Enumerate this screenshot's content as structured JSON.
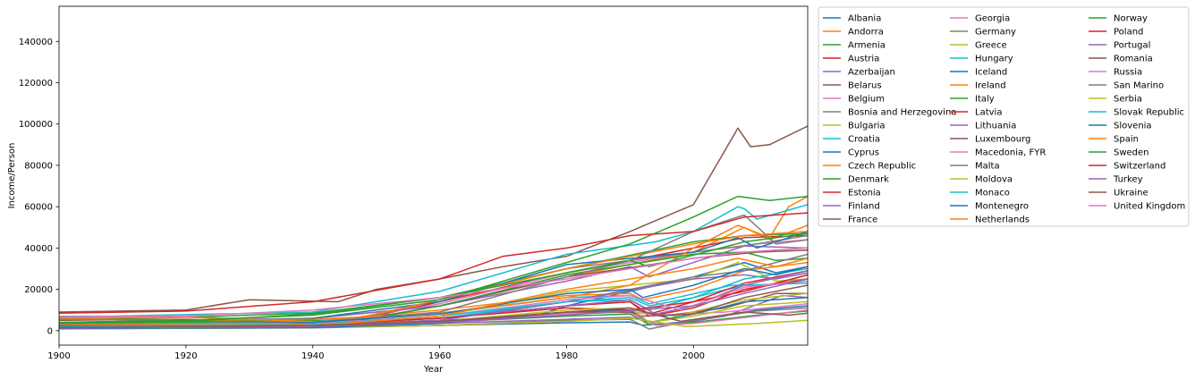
{
  "chart_data": {
    "type": "line",
    "title": "",
    "xlabel": "Year",
    "ylabel": "Income/Person",
    "xlim": [
      1900,
      2018
    ],
    "ylim": [
      -7000,
      157000
    ],
    "x_ticks": [
      1900,
      1920,
      1940,
      1960,
      1980,
      2000
    ],
    "y_ticks": [
      0,
      20000,
      40000,
      60000,
      80000,
      100000,
      120000,
      140000
    ],
    "grid": false,
    "legend_position": "outside-right",
    "legend_columns": 3,
    "series": [
      {
        "name": "Albania",
        "color": "#1f77b4",
        "x": [
          1900,
          1940,
          1960,
          1980,
          1990,
          1992,
          2000,
          2010,
          2018
        ],
        "values": [
          1200,
          1800,
          2500,
          3800,
          4200,
          2600,
          4500,
          10000,
          12000
        ]
      },
      {
        "name": "Andorra",
        "color": "#ff7f0e",
        "x": [
          1900,
          1940,
          1960,
          1980,
          2000,
          2008,
          2012,
          2018
        ],
        "values": [
          4000,
          6000,
          12000,
          26000,
          38000,
          50000,
          44000,
          51000
        ]
      },
      {
        "name": "Armenia",
        "color": "#2ca02c",
        "x": [
          1900,
          1940,
          1960,
          1980,
          1990,
          1993,
          2000,
          2010,
          2018
        ],
        "values": [
          1500,
          2500,
          4000,
          7000,
          8000,
          3000,
          4000,
          7500,
          9500
        ]
      },
      {
        "name": "Austria",
        "color": "#d62728",
        "x": [
          1900,
          1920,
          1945,
          1960,
          1980,
          2000,
          2008,
          2018
        ],
        "values": [
          5500,
          5000,
          4000,
          14000,
          28000,
          40000,
          45000,
          46000
        ]
      },
      {
        "name": "Azerbaijan",
        "color": "#9467bd",
        "x": [
          1900,
          1940,
          1960,
          1980,
          1990,
          1995,
          2005,
          2014,
          2018
        ],
        "values": [
          1300,
          2000,
          3500,
          5500,
          6500,
          2500,
          7000,
          17000,
          16000
        ]
      },
      {
        "name": "Belarus",
        "color": "#8c564b",
        "x": [
          1900,
          1940,
          1960,
          1980,
          1990,
          1995,
          2005,
          2013,
          2018
        ],
        "values": [
          1500,
          2500,
          4500,
          8500,
          11000,
          7000,
          11000,
          18000,
          18000
        ]
      },
      {
        "name": "Belgium",
        "color": "#e377c2",
        "x": [
          1900,
          1920,
          1944,
          1960,
          1980,
          2000,
          2010,
          2018
        ],
        "values": [
          6500,
          6500,
          5000,
          13000,
          28000,
          38000,
          42000,
          44000
        ]
      },
      {
        "name": "Bosnia and Herzegovina",
        "color": "#7f7f7f",
        "x": [
          1900,
          1940,
          1960,
          1980,
          1990,
          1993,
          2000,
          2010,
          2018
        ],
        "values": [
          900,
          1300,
          2500,
          5000,
          5500,
          800,
          5000,
          9500,
          11000
        ]
      },
      {
        "name": "Bulgaria",
        "color": "#bcbd22",
        "x": [
          1900,
          1940,
          1960,
          1980,
          1990,
          1997,
          2008,
          2018
        ],
        "values": [
          1500,
          2000,
          4500,
          8500,
          10000,
          7000,
          15000,
          18000
        ]
      },
      {
        "name": "Croatia",
        "color": "#17becf",
        "x": [
          1900,
          1940,
          1960,
          1980,
          1990,
          1993,
          2000,
          2008,
          2018
        ],
        "values": [
          2000,
          3000,
          6000,
          14000,
          15000,
          10000,
          16000,
          22000,
          23000
        ]
      },
      {
        "name": "Cyprus",
        "color": "#1f77b4",
        "x": [
          1900,
          1940,
          1960,
          1975,
          1980,
          2000,
          2008,
          2013,
          2018
        ],
        "values": [
          1500,
          2500,
          5000,
          7000,
          12000,
          26000,
          33000,
          28000,
          31000
        ]
      },
      {
        "name": "Czech Republic",
        "color": "#ff7f0e",
        "x": [
          1900,
          1940,
          1960,
          1980,
          1990,
          1992,
          2000,
          2008,
          2018
        ],
        "values": [
          3000,
          4500,
          10000,
          17000,
          18000,
          15000,
          20000,
          29000,
          33000
        ]
      },
      {
        "name": "Denmark",
        "color": "#2ca02c",
        "x": [
          1900,
          1920,
          1940,
          1960,
          1980,
          2000,
          2008,
          2018
        ],
        "values": [
          5000,
          6500,
          8500,
          16000,
          30000,
          43000,
          46000,
          47000
        ]
      },
      {
        "name": "Estonia",
        "color": "#d62728",
        "x": [
          1900,
          1940,
          1960,
          1980,
          1990,
          1993,
          2000,
          2008,
          2018
        ],
        "values": [
          2000,
          3500,
          6000,
          12000,
          14000,
          8000,
          14000,
          23000,
          29000
        ]
      },
      {
        "name": "Finland",
        "color": "#9467bd",
        "x": [
          1900,
          1920,
          1940,
          1960,
          1980,
          1990,
          1993,
          2008,
          2018
        ],
        "values": [
          3000,
          3500,
          6000,
          12000,
          24000,
          31000,
          26000,
          41000,
          40000
        ]
      },
      {
        "name": "France",
        "color": "#8c564b",
        "x": [
          1900,
          1920,
          1944,
          1960,
          1980,
          2000,
          2010,
          2018
        ],
        "values": [
          5000,
          5500,
          3500,
          12000,
          26000,
          35000,
          38000,
          39000
        ]
      },
      {
        "name": "Georgia",
        "color": "#e377c2",
        "x": [
          1900,
          1940,
          1960,
          1985,
          1990,
          1994,
          2000,
          2010,
          2018
        ],
        "values": [
          1200,
          2500,
          4500,
          9500,
          8500,
          2500,
          3500,
          7000,
          10000
        ]
      },
      {
        "name": "Germany",
        "color": "#7f7f7f",
        "x": [
          1900,
          1920,
          1945,
          1960,
          1980,
          2000,
          2008,
          2018
        ],
        "values": [
          5500,
          5000,
          4000,
          15000,
          30000,
          38000,
          41000,
          46000
        ]
      },
      {
        "name": "Greece",
        "color": "#bcbd22",
        "x": [
          1900,
          1940,
          1960,
          1980,
          2000,
          2007,
          2013,
          2018
        ],
        "values": [
          2000,
          3500,
          7000,
          19000,
          25000,
          33000,
          24000,
          25000
        ]
      },
      {
        "name": "Hungary",
        "color": "#17becf",
        "x": [
          1900,
          1940,
          1960,
          1980,
          1990,
          1993,
          2006,
          2012,
          2018
        ],
        "values": [
          3000,
          4500,
          8000,
          16000,
          17000,
          13000,
          22000,
          22000,
          27000
        ]
      },
      {
        "name": "Iceland",
        "color": "#1f77b4",
        "x": [
          1900,
          1940,
          1960,
          1980,
          2000,
          2007,
          2010,
          2018
        ],
        "values": [
          3000,
          6000,
          14000,
          32000,
          38000,
          45000,
          40000,
          48000
        ]
      },
      {
        "name": "Ireland",
        "color": "#ff7f0e",
        "x": [
          1900,
          1940,
          1960,
          1980,
          1990,
          2000,
          2007,
          2012,
          2015,
          2018
        ],
        "values": [
          4000,
          5500,
          8500,
          16000,
          22000,
          40000,
          51000,
          45000,
          60000,
          65000
        ]
      },
      {
        "name": "Italy",
        "color": "#2ca02c",
        "x": [
          1900,
          1940,
          1945,
          1960,
          1980,
          2000,
          2008,
          2013,
          2018
        ],
        "values": [
          3500,
          5000,
          3500,
          12000,
          27000,
          37000,
          38000,
          34000,
          35000
        ]
      },
      {
        "name": "Latvia",
        "color": "#d62728",
        "x": [
          1900,
          1940,
          1960,
          1980,
          1990,
          1993,
          2000,
          2008,
          2018
        ],
        "values": [
          2500,
          4000,
          6000,
          12000,
          14000,
          7000,
          11000,
          20000,
          25000
        ]
      },
      {
        "name": "Lithuania",
        "color": "#9467bd",
        "x": [
          1900,
          1940,
          1960,
          1980,
          1990,
          1994,
          2000,
          2008,
          2018
        ],
        "values": [
          2000,
          3500,
          6000,
          12000,
          15000,
          8000,
          12000,
          22000,
          29000
        ]
      },
      {
        "name": "Luxembourg",
        "color": "#8c564b",
        "x": [
          1900,
          1920,
          1930,
          1944,
          1950,
          1960,
          1970,
          1980,
          1990,
          2000,
          2007,
          2009,
          2012,
          2018
        ],
        "values": [
          9000,
          10000,
          15000,
          14000,
          20000,
          25000,
          31000,
          36000,
          48000,
          61000,
          98000,
          89000,
          90000,
          99000
        ]
      },
      {
        "name": "Macedonia, FYR",
        "color": "#e377c2",
        "x": [
          1900,
          1940,
          1960,
          1980,
          1990,
          1995,
          2005,
          2018
        ],
        "values": [
          1200,
          2000,
          3500,
          8000,
          9000,
          7500,
          9000,
          13000
        ]
      },
      {
        "name": "Malta",
        "color": "#7f7f7f",
        "x": [
          1900,
          1940,
          1960,
          1980,
          2000,
          2008,
          2018
        ],
        "values": [
          2000,
          3000,
          5000,
          14000,
          26000,
          29000,
          37000
        ]
      },
      {
        "name": "Moldova",
        "color": "#bcbd22",
        "x": [
          1900,
          1940,
          1960,
          1980,
          1990,
          1999,
          2010,
          2018
        ],
        "values": [
          800,
          1500,
          2500,
          4500,
          6000,
          2000,
          3500,
          5000
        ]
      },
      {
        "name": "Monaco",
        "color": "#17becf",
        "x": [
          1900,
          1940,
          1960,
          1980,
          1994,
          2000,
          2007,
          2008,
          2010,
          2018
        ],
        "values": [
          6500,
          9000,
          19000,
          37000,
          43000,
          48000,
          60000,
          59000,
          54000,
          61000
        ]
      },
      {
        "name": "Montenegro",
        "color": "#1f77b4",
        "x": [
          1900,
          1940,
          1960,
          1980,
          1990,
          1993,
          2000,
          2008,
          2018
        ],
        "values": [
          1000,
          1500,
          3500,
          9000,
          10000,
          4000,
          8000,
          14000,
          16000
        ]
      },
      {
        "name": "Netherlands",
        "color": "#ff7f0e",
        "x": [
          1900,
          1920,
          1944,
          1960,
          1980,
          2000,
          2008,
          2018
        ],
        "values": [
          6000,
          6500,
          4000,
          15000,
          30000,
          42000,
          46000,
          48000
        ]
      },
      {
        "name": "Norway",
        "color": "#2ca02c",
        "x": [
          1900,
          1920,
          1940,
          1960,
          1980,
          1990,
          2000,
          2007,
          2012,
          2018
        ],
        "values": [
          4000,
          5000,
          7500,
          15000,
          33000,
          42000,
          55000,
          65000,
          63000,
          65000
        ]
      },
      {
        "name": "Poland",
        "color": "#d62728",
        "x": [
          1900,
          1940,
          1960,
          1980,
          1990,
          2000,
          2008,
          2018
        ],
        "values": [
          2000,
          3000,
          6000,
          11000,
          10000,
          14000,
          19000,
          27000
        ]
      },
      {
        "name": "Portugal",
        "color": "#9467bd",
        "x": [
          1900,
          1940,
          1960,
          1980,
          2000,
          2008,
          2013,
          2018
        ],
        "values": [
          1500,
          2500,
          5000,
          14000,
          25000,
          27000,
          25000,
          28000
        ]
      },
      {
        "name": "Romania",
        "color": "#8c564b",
        "x": [
          1900,
          1940,
          1960,
          1980,
          1990,
          1992,
          2000,
          2008,
          2018
        ],
        "values": [
          1500,
          2500,
          4000,
          9000,
          9000,
          7000,
          8000,
          16000,
          22000
        ]
      },
      {
        "name": "Russia",
        "color": "#e377c2",
        "x": [
          1900,
          1940,
          1960,
          1980,
          1990,
          1998,
          2008,
          2018
        ],
        "values": [
          2000,
          3500,
          7000,
          15000,
          17000,
          10000,
          21000,
          24000
        ]
      },
      {
        "name": "San Marino",
        "color": "#7f7f7f",
        "x": [
          1900,
          1940,
          1960,
          1980,
          1990,
          2000,
          2008,
          2013,
          2018
        ],
        "values": [
          3000,
          4000,
          9000,
          26000,
          34000,
          48000,
          56000,
          42000,
          44000
        ]
      },
      {
        "name": "Serbia",
        "color": "#bcbd22",
        "x": [
          1900,
          1940,
          1960,
          1980,
          1990,
          1993,
          2000,
          2008,
          2018
        ],
        "values": [
          1500,
          2500,
          4500,
          10000,
          11000,
          4000,
          7000,
          12000,
          14000
        ]
      },
      {
        "name": "Slovak Republic",
        "color": "#17becf",
        "x": [
          1900,
          1940,
          1960,
          1980,
          1990,
          1993,
          2000,
          2008,
          2018
        ],
        "values": [
          2000,
          3000,
          7000,
          14000,
          16000,
          12000,
          16000,
          25000,
          30000
        ]
      },
      {
        "name": "Slovenia",
        "color": "#1f77b4",
        "x": [
          1900,
          1940,
          1960,
          1980,
          1990,
          1992,
          2000,
          2008,
          2013,
          2018
        ],
        "values": [
          2500,
          4000,
          8000,
          18000,
          20000,
          16000,
          22000,
          30000,
          27000,
          31000
        ]
      },
      {
        "name": "Spain",
        "color": "#ff7f0e",
        "x": [
          1900,
          1936,
          1940,
          1960,
          1980,
          2000,
          2007,
          2013,
          2018
        ],
        "values": [
          3000,
          3500,
          2500,
          7000,
          20000,
          30000,
          35000,
          31000,
          35000
        ]
      },
      {
        "name": "Sweden",
        "color": "#2ca02c",
        "x": [
          1900,
          1920,
          1940,
          1960,
          1980,
          1990,
          1993,
          2008,
          2018
        ],
        "values": [
          3500,
          4500,
          8000,
          16000,
          28000,
          34000,
          31000,
          43000,
          47000
        ]
      },
      {
        "name": "Switzerland",
        "color": "#d62728",
        "x": [
          1900,
          1920,
          1940,
          1960,
          1970,
          1980,
          1990,
          2000,
          2008,
          2018
        ],
        "values": [
          8500,
          9500,
          14000,
          25000,
          36000,
          40000,
          46000,
          48000,
          55000,
          57000
        ]
      },
      {
        "name": "Turkey",
        "color": "#9467bd",
        "x": [
          1900,
          1940,
          1960,
          1980,
          2000,
          2008,
          2018
        ],
        "values": [
          1200,
          2000,
          4000,
          7500,
          12000,
          18000,
          25000
        ]
      },
      {
        "name": "Ukraine",
        "color": "#8c564b",
        "x": [
          1900,
          1940,
          1960,
          1980,
          1990,
          1998,
          2008,
          2015,
          2018
        ],
        "values": [
          1500,
          2500,
          4500,
          9000,
          11000,
          4500,
          9000,
          7500,
          8500
        ]
      },
      {
        "name": "United Kingdom",
        "color": "#e377c2",
        "x": [
          1900,
          1920,
          1940,
          1960,
          1980,
          2000,
          2008,
          2018
        ],
        "values": [
          7000,
          7000,
          10000,
          16000,
          25000,
          35000,
          38000,
          40000
        ]
      }
    ]
  }
}
